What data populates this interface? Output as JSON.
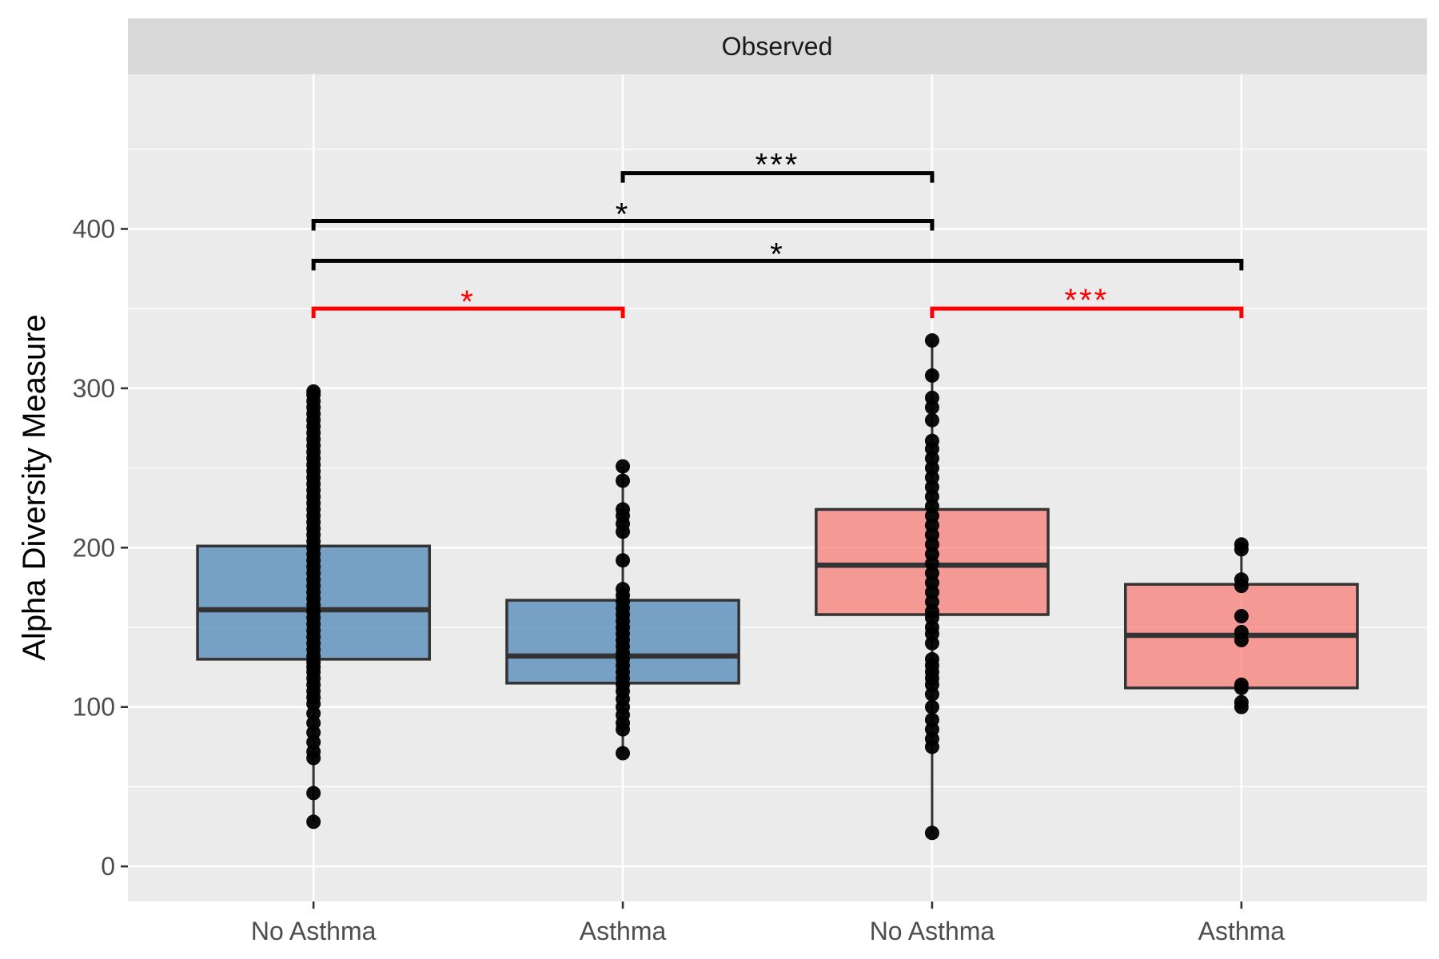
{
  "chart_data": {
    "type": "boxplot",
    "facet_label": "Observed",
    "title": "",
    "xlabel": "",
    "ylabel": "Alpha Diversity Measure",
    "ylim": [
      -22,
      497
    ],
    "yticks": [
      0,
      100,
      200,
      300,
      400
    ],
    "grid": true,
    "legend": "none",
    "groups": [
      {
        "label": "No Asthma",
        "color": "#4682b4",
        "q1": 130,
        "median": 161,
        "q3": 201,
        "whisker_low": 28,
        "whisker_high": 298,
        "points": [
          28,
          46,
          68,
          72,
          78,
          84,
          90,
          96,
          102,
          106,
          110,
          114,
          118,
          122,
          125,
          128,
          132,
          136,
          140,
          144,
          148,
          152,
          156,
          160,
          164,
          168,
          172,
          176,
          180,
          184,
          188,
          192,
          196,
          200,
          204,
          208,
          212,
          216,
          220,
          224,
          228,
          232,
          236,
          240,
          244,
          248,
          252,
          256,
          260,
          264,
          268,
          272,
          276,
          280,
          284,
          288,
          292,
          296,
          298
        ]
      },
      {
        "label": "Asthma",
        "color": "#4682b4",
        "q1": 115,
        "median": 132,
        "q3": 167,
        "whisker_low": 71,
        "whisker_high": 251,
        "points": [
          71,
          86,
          90,
          95,
          100,
          105,
          110,
          114,
          118,
          122,
          126,
          130,
          134,
          138,
          142,
          146,
          150,
          154,
          158,
          162,
          166,
          170,
          174,
          192,
          210,
          215,
          220,
          224,
          242,
          251
        ]
      },
      {
        "label": "No Asthma",
        "color": "#f8766d",
        "q1": 158,
        "median": 189,
        "q3": 224,
        "whisker_low": 21,
        "whisker_high": 330,
        "points": [
          21,
          75,
          80,
          86,
          92,
          100,
          108,
          114,
          118,
          122,
          126,
          130,
          140,
          146,
          150,
          156,
          160,
          166,
          172,
          178,
          184,
          190,
          196,
          202,
          208,
          214,
          220,
          226,
          232,
          238,
          244,
          250,
          256,
          262,
          267,
          280,
          288,
          294,
          308,
          330
        ]
      },
      {
        "label": "Asthma",
        "color": "#f8766d",
        "q1": 112,
        "median": 145,
        "q3": 177,
        "whisker_low": 100,
        "whisker_high": 202,
        "points": [
          100,
          103,
          112,
          114,
          142,
          147,
          157,
          176,
          180,
          199,
          202
        ]
      }
    ],
    "comparisons": [
      {
        "from": 2,
        "to": 3,
        "y": 435,
        "label": "***",
        "color": "#000000"
      },
      {
        "from": 1,
        "to": 3,
        "y": 405,
        "label": "*",
        "color": "#000000"
      },
      {
        "from": 1,
        "to": 4,
        "y": 380,
        "label": "*",
        "color": "#000000"
      },
      {
        "from": 1,
        "to": 2,
        "y": 350,
        "label": "*",
        "color": "#ff0000"
      },
      {
        "from": 3,
        "to": 4,
        "y": 350,
        "label": "***",
        "color": "#ff0000"
      }
    ]
  }
}
